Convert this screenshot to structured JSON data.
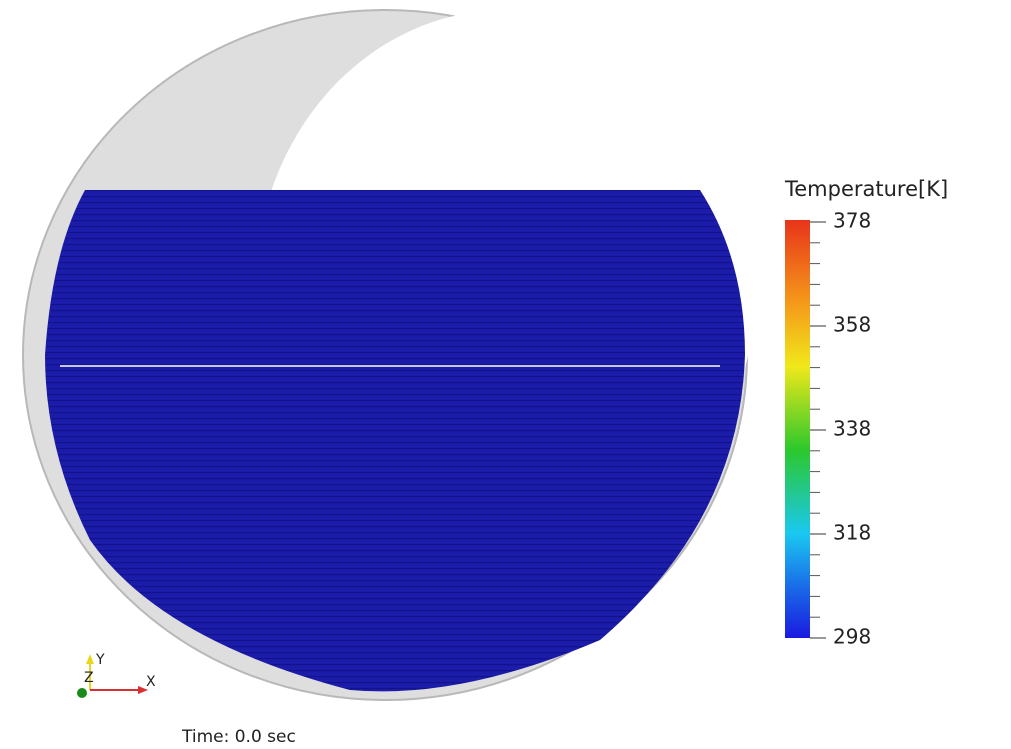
{
  "legend": {
    "title": "Temperature[K]",
    "ticks": [
      378,
      358,
      338,
      318,
      298
    ]
  },
  "axes": {
    "y": "Y",
    "z": "Z",
    "x": "X"
  },
  "time": "Time: 0.0 sec"
}
